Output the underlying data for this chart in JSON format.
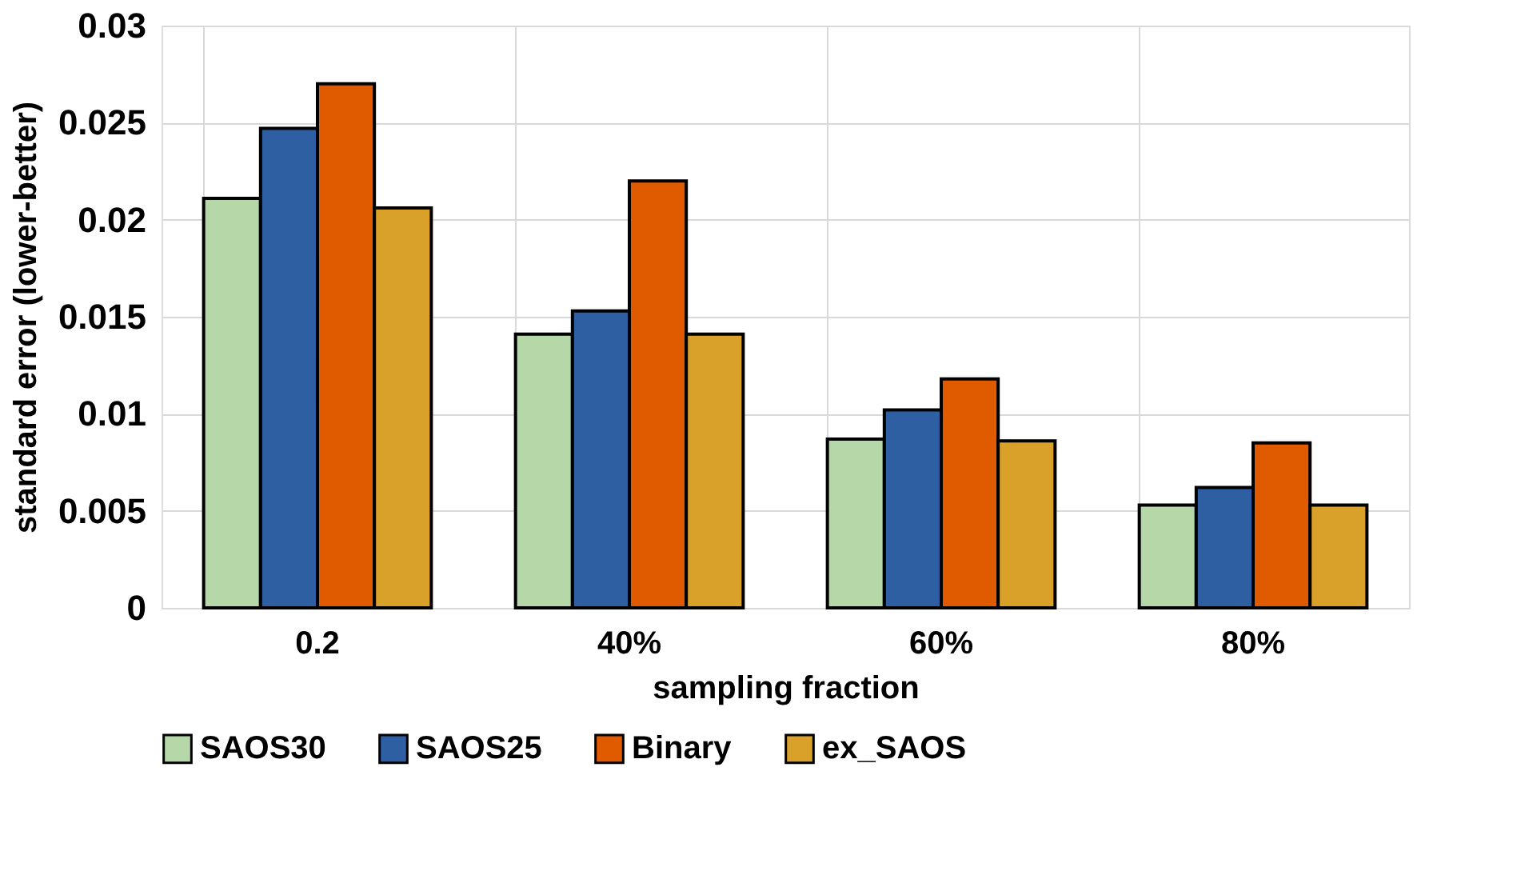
{
  "chart_data": {
    "type": "bar",
    "xlabel": "sampling fraction",
    "ylabel": "standard error (lower-better)",
    "categories": [
      "0.2",
      "40%",
      "60%",
      "80%"
    ],
    "series": [
      {
        "name": "SAOS30",
        "color": "#b6d7a8",
        "values": [
          0.0211,
          0.0141,
          0.0087,
          0.0053
        ]
      },
      {
        "name": "SAOS25",
        "color": "#2e5fa3",
        "values": [
          0.0247,
          0.0153,
          0.0102,
          0.0062
        ]
      },
      {
        "name": "Binary",
        "color": "#e05a00",
        "values": [
          0.027,
          0.022,
          0.0118,
          0.0085
        ]
      },
      {
        "name": "ex_SAOS",
        "color": "#d9a02a",
        "values": [
          0.0206,
          0.0141,
          0.0086,
          0.0053
        ]
      }
    ],
    "ylim": [
      0,
      0.03
    ],
    "yticks": [
      0,
      0.005,
      0.01,
      0.015,
      0.02,
      0.025,
      0.03
    ],
    "grid": true,
    "legend": "bottom"
  }
}
